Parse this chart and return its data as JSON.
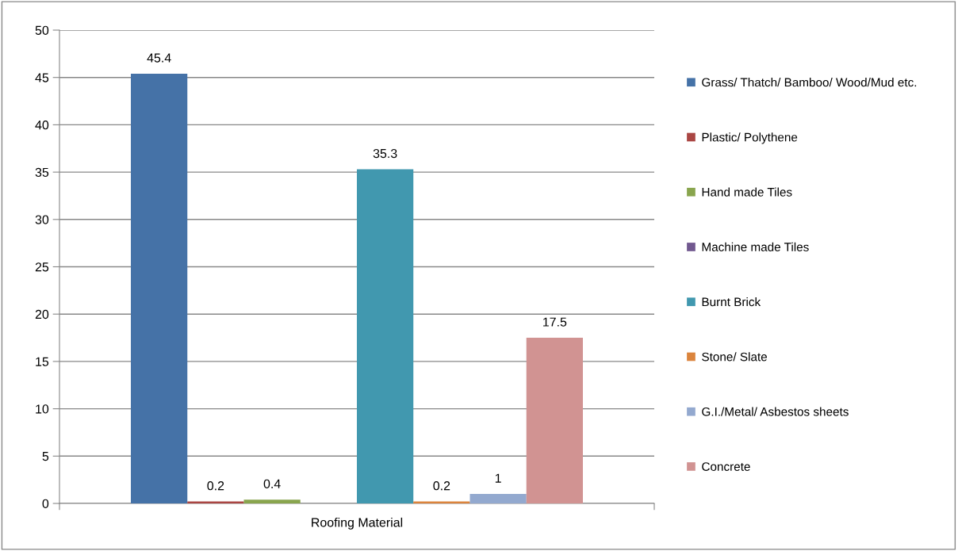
{
  "chart_data": {
    "type": "bar",
    "categories": [
      "Roofing Material"
    ],
    "series": [
      {
        "name": "Grass/ Thatch/ Bamboo/ Wood/Mud etc.",
        "color": "#4572a7",
        "values": [
          45.4
        ],
        "value_labels": [
          "45.4"
        ]
      },
      {
        "name": "Plastic/ Polythene",
        "color": "#aa4643",
        "values": [
          0.2
        ],
        "value_labels": [
          "0.2"
        ]
      },
      {
        "name": "Hand made Tiles",
        "color": "#89a54e",
        "values": [
          0.4
        ],
        "value_labels": [
          "0.4"
        ]
      },
      {
        "name": "Machine made Tiles",
        "color": "#71588f",
        "values": [
          0
        ],
        "value_labels": [
          null
        ]
      },
      {
        "name": "Burnt Brick",
        "color": "#4198af",
        "values": [
          35.3
        ],
        "value_labels": [
          "35.3"
        ]
      },
      {
        "name": "Stone/ Slate",
        "color": "#db843d",
        "values": [
          0.2
        ],
        "value_labels": [
          "0.2"
        ]
      },
      {
        "name": "G.I./Metal/ Asbestos sheets",
        "color": "#93a9cf",
        "values": [
          1
        ],
        "value_labels": [
          "1"
        ]
      },
      {
        "name": "Concrete",
        "color": "#d19392",
        "values": [
          17.5
        ],
        "value_labels": [
          "17.5"
        ]
      }
    ],
    "ylim": [
      0,
      50
    ],
    "yticks": [
      0,
      5,
      10,
      15,
      20,
      25,
      30,
      35,
      40,
      45,
      50
    ],
    "grid": "y",
    "legend": "right"
  }
}
